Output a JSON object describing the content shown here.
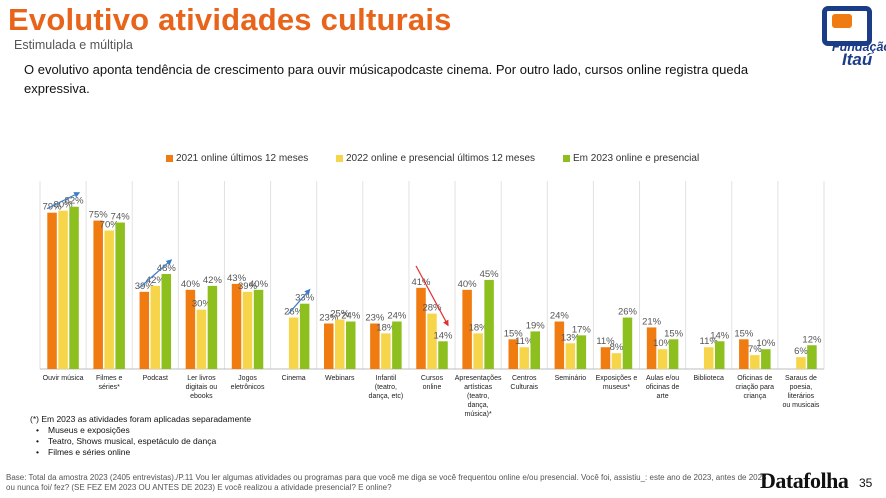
{
  "header": {
    "title": "Evolutivo atividades culturais",
    "subtitle": "Estimulada e múltipla",
    "intro": "O evolutivo aponta tendência de crescimento para ouvir músicapodcaste cinema. Por outro lado, cursos online registra queda expressiva."
  },
  "logo": {
    "line1": "Fundação",
    "line2": "Itaú"
  },
  "colors": {
    "title": "#e8641b",
    "s2021": "#f07b11",
    "s2022": "#f7d54a",
    "s2023": "#8dbf1f",
    "arrow_up": "#3d7cc9",
    "arrow_down": "#e03030"
  },
  "chart_data": {
    "type": "bar",
    "categories": [
      "Ouvir música",
      "Filmes e séries*",
      "Podcast",
      "Ler livros digitais ou ebooks",
      "Jogos eletrônicos",
      "Cinema",
      "Webinars",
      "Infantil (teatro, dança, etc)",
      "Cursos online",
      "Apresentações artísticas (teatro, dança, música)*",
      "Centros Culturais",
      "Seminário",
      "Exposições e museus*",
      "Aulas e/ou oficinas de arte",
      "Biblioteca",
      "Oficinas de criação para criança",
      "Saraus de poesia, literários ou musicais"
    ],
    "series": [
      {
        "name": "2021 online últimos 12 meses",
        "values": [
          79,
          75,
          39,
          40,
          43,
          null,
          23,
          23,
          41,
          40,
          15,
          24,
          11,
          21,
          null,
          15,
          null
        ]
      },
      {
        "name": "2022 online e presencial últimos 12 meses",
        "values": [
          80,
          70,
          42,
          30,
          39,
          26,
          25,
          18,
          28,
          18,
          11,
          13,
          8,
          10,
          11,
          7,
          6
        ]
      },
      {
        "name": "Em 2023 online e presencial",
        "values": [
          82,
          74,
          48,
          42,
          40,
          33,
          24,
          24,
          14,
          45,
          19,
          17,
          26,
          15,
          14,
          10,
          12
        ]
      }
    ],
    "ylim": [
      0,
      100
    ],
    "legend_position": "top-center",
    "grid": "vertical separators",
    "trend_arrows": [
      {
        "category": "Ouvir música",
        "direction": "up"
      },
      {
        "category": "Podcast",
        "direction": "up"
      },
      {
        "category": "Cinema",
        "direction": "up"
      },
      {
        "category": "Cursos online",
        "direction": "down"
      }
    ]
  },
  "notes": {
    "title": "(*) Em 2023 as atividades foram aplicadas separadamente",
    "items": [
      "Museus e exposições",
      "Teatro, Shows musical, espetáculo de dança",
      "Filmes e séries online"
    ]
  },
  "footer": {
    "base": "Base: Total da amostra 2023 (2405 entrevistas)./P.11 Vou ler algumas atividades ou programas para que você me diga se você frequentou online e/ou presencial. Você foi, assistiu_: este ano de 2023, antes de 2023 ou nunca foi/ fez? (SE FEZ EM 2023 OU ANTES DE 2023) E você realizou a atividade presencial? E online?",
    "brand": "Datafolha",
    "page": "35"
  }
}
